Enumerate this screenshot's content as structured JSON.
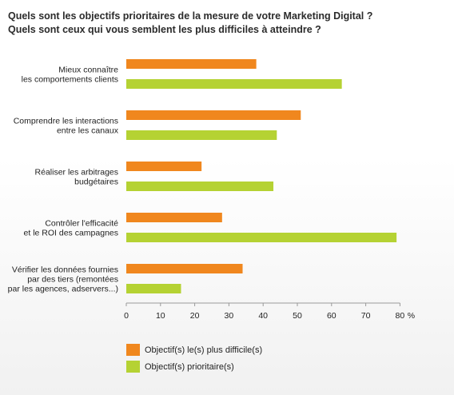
{
  "title": {
    "line1": "Quels sont les objectifs prioritaires de la mesure de votre Marketing Digital ?",
    "line2": "Quels sont ceux qui vous semblent les plus difficiles à atteindre ?"
  },
  "chart_data": {
    "type": "bar",
    "orientation": "horizontal",
    "categories": [
      [
        "Mieux connaître",
        "les comportements clients"
      ],
      [
        "Comprendre les interactions",
        "entre les canaux"
      ],
      [
        "Réaliser les arbitrages",
        "budgétaires"
      ],
      [
        "Contrôler l'efficacité",
        "et le ROI des campagnes"
      ],
      [
        "Vérifier les données fournies",
        "par des tiers (remontées",
        "par les agences, adservers...)"
      ]
    ],
    "series": [
      {
        "name": "Objectif(s) le(s) plus difficile(s)",
        "color": "#f0871e",
        "values": [
          38,
          51,
          22,
          28,
          34
        ]
      },
      {
        "name": "Objectif(s) prioritaire(s)",
        "color": "#b5d233",
        "values": [
          63,
          44,
          43,
          79,
          16
        ]
      }
    ],
    "x_ticks": [
      "0",
      "10",
      "20",
      "30",
      "40",
      "50",
      "60",
      "70",
      "80"
    ],
    "x_unit": "%",
    "xlim": [
      0,
      80
    ],
    "grid": false,
    "legend_position": "bottom"
  }
}
